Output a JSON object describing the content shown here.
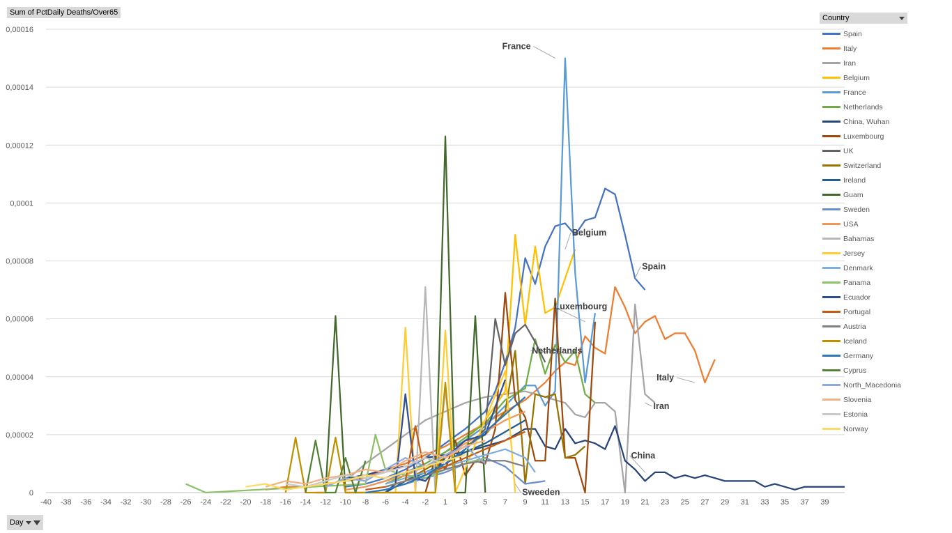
{
  "measure_label": "Sum of PctDaily Deaths/Over65",
  "legend_title": "Country",
  "axis_field_label": "Day",
  "chart_data": {
    "type": "line",
    "title": "",
    "xlabel": "",
    "ylabel": "",
    "xlim": [
      -40,
      40
    ],
    "ylim": [
      0,
      0.00016
    ],
    "y_ticks": [
      "0",
      "0,00002",
      "0,00004",
      "0,00006",
      "0,00008",
      "0,0001",
      "0,00012",
      "0,00014",
      "0,00016"
    ],
    "x_ticks": [
      "-40",
      "-38",
      "-36",
      "-34",
      "-32",
      "-30",
      "-28",
      "-26",
      "-24",
      "-22",
      "-20",
      "-18",
      "-16",
      "-14",
      "-12",
      "-10",
      "-8",
      "-6",
      "-4",
      "-2",
      "1",
      "3",
      "5",
      "7",
      "9",
      "11",
      "13",
      "15",
      "17",
      "19",
      "21",
      "23",
      "25",
      "27",
      "29",
      "31",
      "33",
      "35",
      "37",
      "39"
    ],
    "gridlines": "horizontal",
    "legend_position": "right",
    "series": [
      {
        "name": "Spain",
        "color": "#4472c4",
        "x": [
          -10,
          -8,
          -6,
          -4,
          -2,
          0,
          2,
          4,
          5,
          6,
          7,
          8,
          9,
          10,
          11,
          12,
          13,
          14,
          15,
          16,
          17,
          18,
          19,
          20
        ],
        "y": [
          2e-06,
          3e-06,
          5e-06,
          8e-06,
          1.2e-05,
          1.7e-05,
          2.2e-05,
          2.8e-05,
          3.5e-05,
          4.5e-05,
          5.7e-05,
          8.1e-05,
          7.2e-05,
          8.5e-05,
          9.2e-05,
          9.3e-05,
          8.9e-05,
          9.4e-05,
          9.5e-05,
          0.000105,
          0.000103,
          8.9e-05,
          7.4e-05,
          7e-05
        ]
      },
      {
        "name": "Italy",
        "color": "#ed7d31",
        "x": [
          -18,
          -16,
          -14,
          -12,
          -10,
          -8,
          -6,
          -4,
          -2,
          0,
          2,
          4,
          6,
          8,
          10,
          11,
          12,
          13,
          14,
          15,
          16,
          17,
          18,
          19,
          20,
          21,
          22,
          23,
          24,
          25,
          26,
          27
        ],
        "y": [
          1e-06,
          2e-06,
          2e-06,
          3e-06,
          4e-06,
          5e-06,
          8e-06,
          1e-05,
          1.3e-05,
          1.6e-05,
          2e-05,
          2.4e-05,
          2.8e-05,
          3.2e-05,
          3.8e-05,
          4.2e-05,
          4.5e-05,
          4.4e-05,
          5.4e-05,
          5e-05,
          4.8e-05,
          7.1e-05,
          6.4e-05,
          5.5e-05,
          5.9e-05,
          6.1e-05,
          5.3e-05,
          5.5e-05,
          5.5e-05,
          4.9e-05,
          3.8e-05,
          4.6e-05
        ]
      },
      {
        "name": "Iran",
        "color": "#a5a5a5",
        "x": [
          -10,
          -8,
          -6,
          -4,
          -2,
          0,
          2,
          4,
          6,
          8,
          10,
          12,
          13,
          14,
          15,
          16,
          17,
          18,
          19,
          20,
          21
        ],
        "y": [
          4e-06,
          1e-05,
          1.5e-05,
          2e-05,
          2.5e-05,
          2.8e-05,
          3.1e-05,
          3.3e-05,
          3.4e-05,
          3.5e-05,
          3.3e-05,
          3.1e-05,
          2.7e-05,
          2.6e-05,
          3.1e-05,
          3.1e-05,
          2.8e-05,
          0.0,
          6.5e-05,
          3.4e-05,
          3.1e-05
        ]
      },
      {
        "name": "Belgium",
        "color": "#ffc000",
        "x": [
          -6,
          -4,
          -2,
          0,
          2,
          4,
          6,
          7,
          8,
          9,
          10,
          11,
          12,
          13
        ],
        "y": [
          3e-06,
          6e-06,
          9e-06,
          1.2e-05,
          1.8e-05,
          2.5e-05,
          3.5e-05,
          8.9e-05,
          5.8e-05,
          8.5e-05,
          6.2e-05,
          6.4e-05,
          7.4e-05,
          8.4e-05
        ]
      },
      {
        "name": "France",
        "color": "#5b9bd5",
        "x": [
          -8,
          -6,
          -4,
          -2,
          0,
          2,
          4,
          6,
          8,
          9,
          10,
          11,
          12,
          13,
          14,
          15
        ],
        "y": [
          2e-06,
          4e-06,
          7e-06,
          1e-05,
          1.4e-05,
          1.8e-05,
          2.3e-05,
          3e-05,
          3.7e-05,
          3.7e-05,
          3e-05,
          3.5e-05,
          0.00015,
          7.6e-05,
          3.8e-05,
          6.2e-05
        ]
      },
      {
        "name": "Netherlands",
        "color": "#70ad47",
        "x": [
          -6,
          -4,
          -2,
          0,
          2,
          4,
          6,
          8,
          9,
          10,
          11,
          12,
          13,
          14,
          15
        ],
        "y": [
          3e-06,
          6e-06,
          1e-05,
          1.4e-05,
          1.9e-05,
          2.4e-05,
          3.2e-05,
          3.6e-05,
          5.3e-05,
          4.1e-05,
          5.1e-05,
          4.5e-05,
          4.9e-05,
          3.4e-05,
          3.1e-05
        ]
      },
      {
        "name": "China, Wuhan",
        "color": "#264478",
        "x": [
          -12,
          -10,
          -8,
          -6,
          -4,
          -2,
          0,
          2,
          4,
          6,
          8,
          9,
          10,
          11,
          12,
          13,
          14,
          15,
          16,
          17,
          18,
          19,
          20,
          21,
          22,
          23,
          24,
          25,
          26,
          27,
          28,
          29,
          30,
          31,
          32,
          33,
          34,
          35,
          36,
          37,
          38,
          39,
          40
        ],
        "y": [
          2e-06,
          5e-06,
          6e-06,
          8e-06,
          9e-06,
          1.2e-05,
          1.3e-05,
          1.4e-05,
          1.6e-05,
          1.8e-05,
          2.2e-05,
          2.2e-05,
          1.6e-05,
          1.5e-05,
          2.2e-05,
          1.7e-05,
          1.8e-05,
          1.7e-05,
          1.5e-05,
          2.3e-05,
          1.1e-05,
          8e-06,
          4e-06,
          7e-06,
          7e-06,
          5e-06,
          6e-06,
          5e-06,
          6e-06,
          5e-06,
          4e-06,
          4e-06,
          4e-06,
          4e-06,
          2e-06,
          3e-06,
          2e-06,
          1e-06,
          2e-06,
          2e-06,
          2e-06,
          2e-06,
          2e-06
        ]
      },
      {
        "name": "Luxembourg",
        "color": "#9e480e",
        "x": [
          -2,
          -1,
          0,
          1,
          2,
          3,
          4,
          5,
          6,
          7,
          8,
          9,
          10,
          11,
          12,
          13,
          14,
          15
        ],
        "y": [
          0.0,
          1.2e-05,
          8e-06,
          1.8e-05,
          6e-06,
          1.1e-05,
          1e-05,
          2.2e-05,
          6.9e-05,
          3.2e-05,
          2.6e-05,
          1.1e-05,
          1.1e-05,
          6.7e-05,
          1.2e-05,
          1.2e-05,
          0.0,
          5.9e-05
        ]
      },
      {
        "name": "UK",
        "color": "#636363",
        "x": [
          -4,
          -2,
          0,
          2,
          4,
          5,
          6,
          7,
          8,
          9,
          10
        ],
        "y": [
          3e-06,
          6e-06,
          1e-05,
          1.5e-05,
          2.2e-05,
          6e-05,
          4.4e-05,
          5.5e-05,
          5.8e-05,
          5.2e-05,
          4.5e-05
        ]
      },
      {
        "name": "Switzerland",
        "color": "#997300",
        "x": [
          -4,
          -2,
          0,
          2,
          4,
          6,
          7,
          8,
          9,
          10,
          11,
          12,
          13,
          14
        ],
        "y": [
          4e-06,
          8e-06,
          1.2e-05,
          1.6e-05,
          2e-05,
          2.8e-05,
          4.9e-05,
          3e-06,
          3.4e-05,
          3.3e-05,
          3.4e-05,
          1.2e-05,
          1.3e-05,
          1.6e-05
        ]
      },
      {
        "name": "Ireland",
        "color": "#255e91",
        "x": [
          -6,
          -4,
          -2,
          0,
          2,
          4,
          6,
          8
        ],
        "y": [
          0.0,
          4e-06,
          7e-06,
          1e-05,
          1.4e-05,
          1.7e-05,
          2.1e-05,
          2.5e-05
        ]
      },
      {
        "name": "Guam",
        "color": "#43682b",
        "x": [
          -13,
          -12,
          -11,
          -10,
          -9,
          -8,
          -1,
          0,
          1,
          2,
          3,
          4
        ],
        "y": [
          0.0,
          0.0,
          6.1e-05,
          0.0,
          0.0,
          0.0,
          0.0,
          0.000123,
          0.0,
          0.0,
          6.1e-05,
          0.0
        ]
      },
      {
        "name": "Sweden",
        "color": "#698ed0",
        "x": [
          -6,
          -4,
          -2,
          0,
          2,
          4,
          6,
          8,
          10
        ],
        "y": [
          1e-06,
          3e-06,
          5e-06,
          7e-06,
          1e-05,
          1.2e-05,
          9e-06,
          3e-06,
          4e-06
        ]
      },
      {
        "name": "USA",
        "color": "#f1975a",
        "x": [
          -10,
          -8,
          -6,
          -4,
          -2,
          0,
          2,
          4,
          6,
          8
        ],
        "y": [
          1e-06,
          2e-06,
          4e-06,
          6e-06,
          9e-06,
          1.3e-05,
          1.7e-05,
          2.1e-05,
          2.5e-05,
          2.8e-05
        ]
      },
      {
        "name": "Bahamas",
        "color": "#b7b7b7",
        "x": [
          -3,
          -2,
          -1,
          0,
          1
        ],
        "y": [
          0.0,
          7.1e-05,
          0.0,
          3.6e-05,
          0.0
        ]
      },
      {
        "name": "Jersey",
        "color": "#ffcd33",
        "x": [
          -5,
          -4,
          -3,
          -1,
          0,
          1,
          6,
          7
        ],
        "y": [
          0.0,
          5.7e-05,
          0.0,
          0.0,
          5.6e-05,
          0.0,
          4.2e-05,
          0.0
        ]
      },
      {
        "name": "Denmark",
        "color": "#7cafdd",
        "x": [
          -6,
          -4,
          -2,
          0,
          2,
          4,
          6,
          8,
          9
        ],
        "y": [
          3e-06,
          5e-06,
          7e-06,
          9e-06,
          1.1e-05,
          1.3e-05,
          1.5e-05,
          1.2e-05,
          7e-06
        ]
      },
      {
        "name": "Panama",
        "color": "#8cc168",
        "x": [
          -26,
          -24,
          -8,
          -7,
          -6,
          -4,
          -2,
          0,
          2,
          4
        ],
        "y": [
          3e-06,
          0.0,
          3e-06,
          2e-05,
          8e-06,
          6e-06,
          5e-06,
          8e-06,
          1e-05,
          1.2e-05
        ]
      },
      {
        "name": "Ecuador",
        "color": "#2f4d8f",
        "x": [
          -6,
          -5,
          -4,
          -3,
          -2,
          0,
          2,
          4,
          6
        ],
        "y": [
          0.0,
          3e-06,
          3.4e-05,
          5e-06,
          4e-06,
          1.2e-05,
          1.8e-05,
          2e-05,
          3.9e-05
        ]
      },
      {
        "name": "Portugal",
        "color": "#c55a11",
        "x": [
          -8,
          -6,
          -4,
          -3,
          -2,
          0,
          2,
          4,
          6,
          8
        ],
        "y": [
          1e-06,
          2e-06,
          4e-06,
          2.3e-05,
          6e-06,
          9e-06,
          1.2e-05,
          1.5e-05,
          1.8e-05,
          2.1e-05
        ]
      },
      {
        "name": "Austria",
        "color": "#7f7f7f",
        "x": [
          -6,
          -4,
          -2,
          0,
          2,
          4,
          6,
          8
        ],
        "y": [
          2e-06,
          4e-06,
          6e-06,
          8e-06,
          1e-05,
          1.1e-05,
          1.1e-05,
          9e-06
        ]
      },
      {
        "name": "Iceland",
        "color": "#bf9000",
        "x": [
          -16,
          -15,
          -14,
          -12,
          -11,
          -10,
          -1,
          0,
          1
        ],
        "y": [
          0.0,
          1.9e-05,
          0.0,
          0.0,
          1.9e-05,
          0.0,
          0.0,
          3.8e-05,
          0.0
        ]
      },
      {
        "name": "Germany",
        "color": "#2e75b6",
        "x": [
          -8,
          -6,
          -4,
          -2,
          0,
          2,
          4,
          6,
          8
        ],
        "y": [
          0.0,
          1e-06,
          3e-06,
          6e-06,
          1e-05,
          1.5e-05,
          2.1e-05,
          2.7e-05,
          3.3e-05
        ]
      },
      {
        "name": "Cyprus",
        "color": "#548235",
        "x": [
          -14,
          -13,
          -12,
          -11,
          -10,
          -9,
          -8
        ],
        "y": [
          0.0,
          1.8e-05,
          0.0,
          0.0,
          1.2e-05,
          0.0,
          1.1e-05
        ]
      },
      {
        "name": "North_Macedonia",
        "color": "#8faadc",
        "x": [
          -12,
          -10,
          -8,
          -6,
          -4,
          -2,
          0,
          2,
          4
        ],
        "y": [
          2e-06,
          5e-06,
          4e-06,
          8e-06,
          1.2e-05,
          9e-06,
          1.3e-05,
          1.6e-05,
          1e-05
        ]
      },
      {
        "name": "Slovenia",
        "color": "#f4b183",
        "x": [
          -18,
          -16,
          -14,
          -12,
          -10,
          -8,
          -6,
          -4,
          -2,
          0,
          2,
          4
        ],
        "y": [
          2e-06,
          4e-06,
          3e-06,
          5e-06,
          6e-06,
          8e-06,
          7e-06,
          1.1e-05,
          1.4e-05,
          1.2e-05,
          1.6e-05,
          1.8e-05
        ]
      },
      {
        "name": "Estonia",
        "color": "#c9c9c9",
        "x": [
          -16,
          -14,
          -12,
          -10,
          -8,
          -6,
          -4,
          -2,
          0
        ],
        "y": [
          3e-06,
          2e-06,
          4e-06,
          6e-06,
          5e-06,
          7e-06,
          9e-06,
          1.2e-05,
          1e-05
        ]
      },
      {
        "name": "Norway",
        "color": "#ffd966",
        "x": [
          -20,
          -18,
          -16,
          -14,
          -12,
          -10,
          -8,
          -6,
          -4,
          -2,
          0,
          2
        ],
        "y": [
          2e-06,
          3e-06,
          1e-06,
          2e-06,
          3e-06,
          4e-06,
          6e-06,
          5e-06,
          7e-06,
          9e-06,
          1.1e-05,
          1.3e-05
        ]
      }
    ],
    "annotations": [
      {
        "text": "France",
        "x": 12,
        "y": 0.00015
      },
      {
        "text": "Belgium",
        "x": 13,
        "y": 8.4e-05
      },
      {
        "text": "Spain",
        "x": 20,
        "y": 7.4e-05
      },
      {
        "text": "Luxembourg",
        "x": 15,
        "y": 5.9e-05
      },
      {
        "text": "Netherlands",
        "x": 14,
        "y": 4.8e-05
      },
      {
        "text": "Italy",
        "x": 26,
        "y": 3.8e-05
      },
      {
        "text": "Iran",
        "x": 21,
        "y": 3.1e-05
      },
      {
        "text": "China",
        "x": 21,
        "y": 7e-06
      },
      {
        "text": "Sweeden",
        "x": 8,
        "y": 3e-06
      }
    ]
  }
}
